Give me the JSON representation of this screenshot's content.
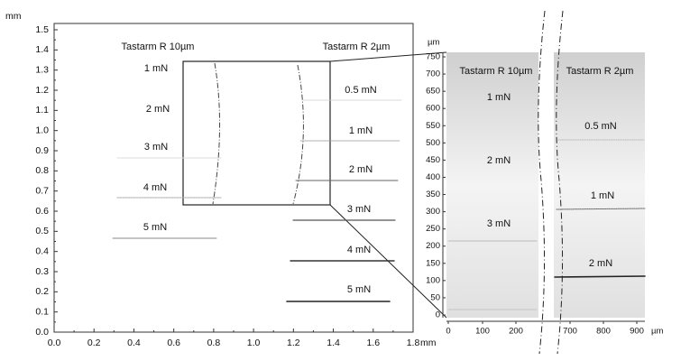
{
  "left_panel": {
    "y_unit": "mm",
    "x_unit": "mm",
    "y_ticks": [
      "0.0",
      "0.1",
      "0.2",
      "0.3",
      "0.4",
      "0.5",
      "0.6",
      "0.7",
      "0.8",
      "0.9",
      "1.0",
      "1.1",
      "1.2",
      "1.3",
      "1.4",
      "1.5"
    ],
    "x_ticks": [
      "0.0",
      "0.2",
      "0.4",
      "0.6",
      "0.8",
      "1.0",
      "1.2",
      "1.4",
      "1.6",
      "1.8"
    ],
    "group_labels": [
      "Tastarm R 10µm",
      "Tastarm R 2µm"
    ],
    "loads_10um": [
      "1 mN",
      "2 mN",
      "3 mN",
      "4 mN",
      "5 mN"
    ],
    "loads_2um": [
      "0.5 mN",
      "1 mN",
      "2 mN",
      "3 mN",
      "4 mN",
      "5 mN"
    ]
  },
  "right_panel": {
    "y_unit": "µm",
    "x_unit": "µm",
    "y_ticks": [
      "0",
      "50",
      "100",
      "150",
      "200",
      "250",
      "300",
      "350",
      "400",
      "450",
      "500",
      "550",
      "600",
      "650",
      "700",
      "750"
    ],
    "x_ticks": [
      "0",
      "100",
      "200",
      "700",
      "800",
      "900"
    ],
    "group_labels": [
      "Tastarm R 10µm",
      "Tastarm R 2µm"
    ],
    "loads_10um": [
      "1 mN",
      "2 mN",
      "3 mN"
    ],
    "loads_2um": [
      "0.5 mN",
      "1 mN",
      "2 mN"
    ]
  }
}
